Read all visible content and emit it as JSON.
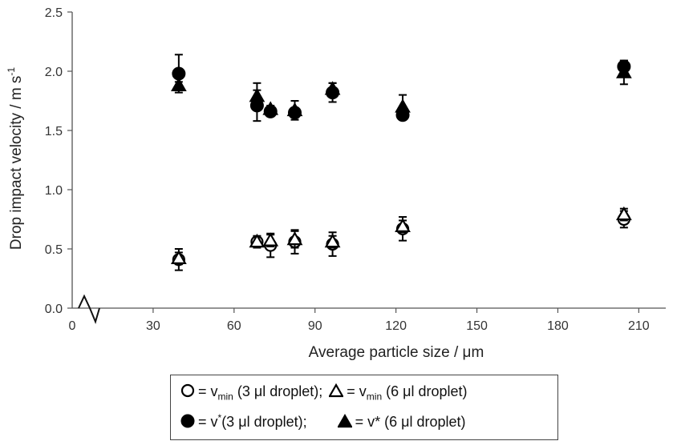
{
  "chart_data": {
    "type": "scatter",
    "xlabel": "Average particle size / μm",
    "ylabel": "Drop impact velocity / m s",
    "ylabel_sup": "-1",
    "xlim": [
      0,
      220
    ],
    "ylim": [
      0,
      2.5
    ],
    "x_ticks": [
      "0",
      "30",
      "60",
      "90",
      "120",
      "150",
      "180",
      "210"
    ],
    "y_ticks": [
      "0.0",
      "0.5",
      "1.0",
      "1.5",
      "2.0",
      "2.5"
    ],
    "axis_break": true,
    "grid": false,
    "legend_position": "bottom",
    "series": [
      {
        "symbol": "open-circle",
        "points": [
          {
            "x": 39.5,
            "y": 0.41,
            "err": 0.09
          },
          {
            "x": 68.5,
            "y": 0.56,
            "err": 0.05
          },
          {
            "x": 73.5,
            "y": 0.53,
            "err": 0.1
          },
          {
            "x": 82.5,
            "y": 0.56,
            "err": 0.1
          },
          {
            "x": 96.5,
            "y": 0.54,
            "err": 0.1
          },
          {
            "x": 122.5,
            "y": 0.67,
            "err": 0.1
          },
          {
            "x": 204.5,
            "y": 0.75,
            "err": 0.07
          }
        ]
      },
      {
        "symbol": "open-triangle",
        "points": [
          {
            "x": 39.5,
            "y": 0.42,
            "err": 0.05
          },
          {
            "x": 68.5,
            "y": 0.56,
            "err": 0.04
          },
          {
            "x": 73.5,
            "y": 0.57,
            "err": 0.05
          },
          {
            "x": 82.5,
            "y": 0.58,
            "err": 0.07
          },
          {
            "x": 96.5,
            "y": 0.56,
            "err": 0.05
          },
          {
            "x": 122.5,
            "y": 0.69,
            "err": 0.05
          },
          {
            "x": 204.5,
            "y": 0.79,
            "err": 0.05
          }
        ]
      },
      {
        "symbol": "filled-circle",
        "points": [
          {
            "x": 39.5,
            "y": 1.98,
            "err": 0.16
          },
          {
            "x": 68.5,
            "y": 1.71,
            "err": 0.13
          },
          {
            "x": 73.5,
            "y": 1.66,
            "err": 0.04
          },
          {
            "x": 82.5,
            "y": 1.65,
            "err": 0.04
          },
          {
            "x": 96.5,
            "y": 1.82,
            "err": 0.08
          },
          {
            "x": 122.5,
            "y": 1.63,
            "err": 0.04
          },
          {
            "x": 204.5,
            "y": 2.04,
            "err": 0.05
          }
        ]
      },
      {
        "symbol": "filled-triangle",
        "points": [
          {
            "x": 39.5,
            "y": 1.88,
            "err": 0.03
          },
          {
            "x": 68.5,
            "y": 1.79,
            "err": 0.11
          },
          {
            "x": 73.5,
            "y": 1.68,
            "err": 0.03
          },
          {
            "x": 82.5,
            "y": 1.67,
            "err": 0.08
          },
          {
            "x": 96.5,
            "y": 1.85,
            "err": 0.05
          },
          {
            "x": 122.5,
            "y": 1.7,
            "err": 0.1
          },
          {
            "x": 204.5,
            "y": 1.99,
            "err": 0.1
          }
        ]
      }
    ]
  },
  "legend": {
    "line1": [
      {
        "symbol": "open-circle",
        "prefix": "= v",
        "sub": "min",
        "sup": "",
        "suffix": " (3 μl droplet);"
      },
      {
        "symbol": "open-triangle",
        "prefix": "= v",
        "sub": "min",
        "sup": "",
        "suffix": " (6 μl droplet)"
      }
    ],
    "line2": [
      {
        "symbol": "filled-circle",
        "prefix": "= v",
        "sub": "",
        "sup": "*",
        "suffix": "(3 μl droplet);"
      },
      {
        "symbol": "filled-triangle",
        "prefix": "= v* ",
        "sub": "",
        "sup": "",
        "suffix": "(6 μl droplet)"
      }
    ]
  },
  "colors": {
    "marker": "#000000",
    "axis": "#555555"
  }
}
